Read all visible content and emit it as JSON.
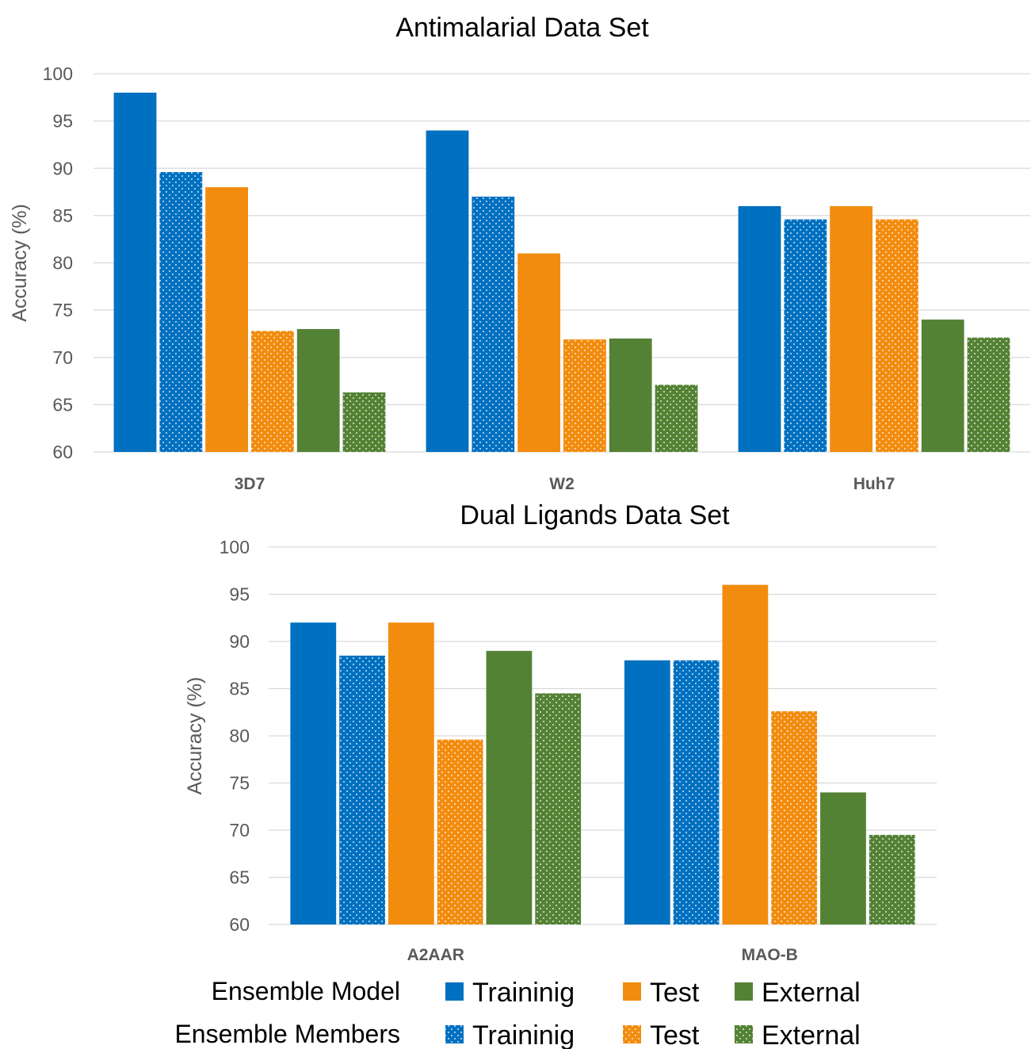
{
  "colors": {
    "training": "#0070c0",
    "test": "#f28c0f",
    "external": "#548235",
    "grid": "#d9d9d9",
    "axis_text": "#595959",
    "title_text": "#000000"
  },
  "chart_data": [
    {
      "type": "bar",
      "title": "Antimalarial Data Set",
      "xlabel": "",
      "ylabel": "Accuracy (%)",
      "ylim": [
        60,
        100
      ],
      "yticks": [
        "60",
        "65",
        "70",
        "75",
        "80",
        "85",
        "90",
        "95",
        "100"
      ],
      "grid": true,
      "categories": [
        "3D7",
        "W2",
        "Huh7"
      ],
      "series": [
        {
          "name": "Traininig",
          "group": "Ensemble Model",
          "kind": "training",
          "pattern": "solid",
          "values": [
            98,
            94,
            86
          ]
        },
        {
          "name": "Traininig",
          "group": "Ensemble Members",
          "kind": "training",
          "pattern": "dotted",
          "values": [
            89.6,
            87,
            84.6
          ]
        },
        {
          "name": "Test",
          "group": "Ensemble Model",
          "kind": "test",
          "pattern": "solid",
          "values": [
            88,
            81,
            86
          ]
        },
        {
          "name": "Test",
          "group": "Ensemble Members",
          "kind": "test",
          "pattern": "dotted",
          "values": [
            72.8,
            71.9,
            84.6
          ]
        },
        {
          "name": "External",
          "group": "Ensemble Model",
          "kind": "external",
          "pattern": "solid",
          "values": [
            73,
            72,
            74
          ]
        },
        {
          "name": "External",
          "group": "Ensemble Members",
          "kind": "external",
          "pattern": "dotted",
          "values": [
            66.3,
            67.1,
            72.1
          ]
        }
      ]
    },
    {
      "type": "bar",
      "title": "Dual Ligands Data Set",
      "xlabel": "",
      "ylabel": "Accuracy (%)",
      "ylim": [
        60,
        100
      ],
      "yticks": [
        "60",
        "65",
        "70",
        "75",
        "80",
        "85",
        "90",
        "95",
        "100"
      ],
      "grid": true,
      "categories": [
        "A2AAR",
        "MAO-B"
      ],
      "series": [
        {
          "name": "Traininig",
          "group": "Ensemble Model",
          "kind": "training",
          "pattern": "solid",
          "values": [
            92,
            88
          ]
        },
        {
          "name": "Traininig",
          "group": "Ensemble Members",
          "kind": "training",
          "pattern": "dotted",
          "values": [
            88.5,
            88
          ]
        },
        {
          "name": "Test",
          "group": "Ensemble Model",
          "kind": "test",
          "pattern": "solid",
          "values": [
            92,
            96
          ]
        },
        {
          "name": "Test",
          "group": "Ensemble Members",
          "kind": "test",
          "pattern": "dotted",
          "values": [
            79.6,
            82.6
          ]
        },
        {
          "name": "External",
          "group": "Ensemble Model",
          "kind": "external",
          "pattern": "solid",
          "values": [
            89,
            74
          ]
        },
        {
          "name": "External",
          "group": "Ensemble Members",
          "kind": "external",
          "pattern": "dotted",
          "values": [
            84.5,
            69.5
          ]
        }
      ]
    }
  ],
  "legend": {
    "placement": "bottom",
    "rows": [
      {
        "label": "Ensemble Model",
        "pattern": "solid",
        "items": [
          {
            "label": "Traininig",
            "kind": "training"
          },
          {
            "label": "Test",
            "kind": "test"
          },
          {
            "label": "External",
            "kind": "external"
          }
        ]
      },
      {
        "label": "Ensemble Members",
        "pattern": "dotted",
        "items": [
          {
            "label": "Traininig",
            "kind": "training"
          },
          {
            "label": "Test",
            "kind": "test"
          },
          {
            "label": "External",
            "kind": "external"
          }
        ]
      }
    ]
  }
}
